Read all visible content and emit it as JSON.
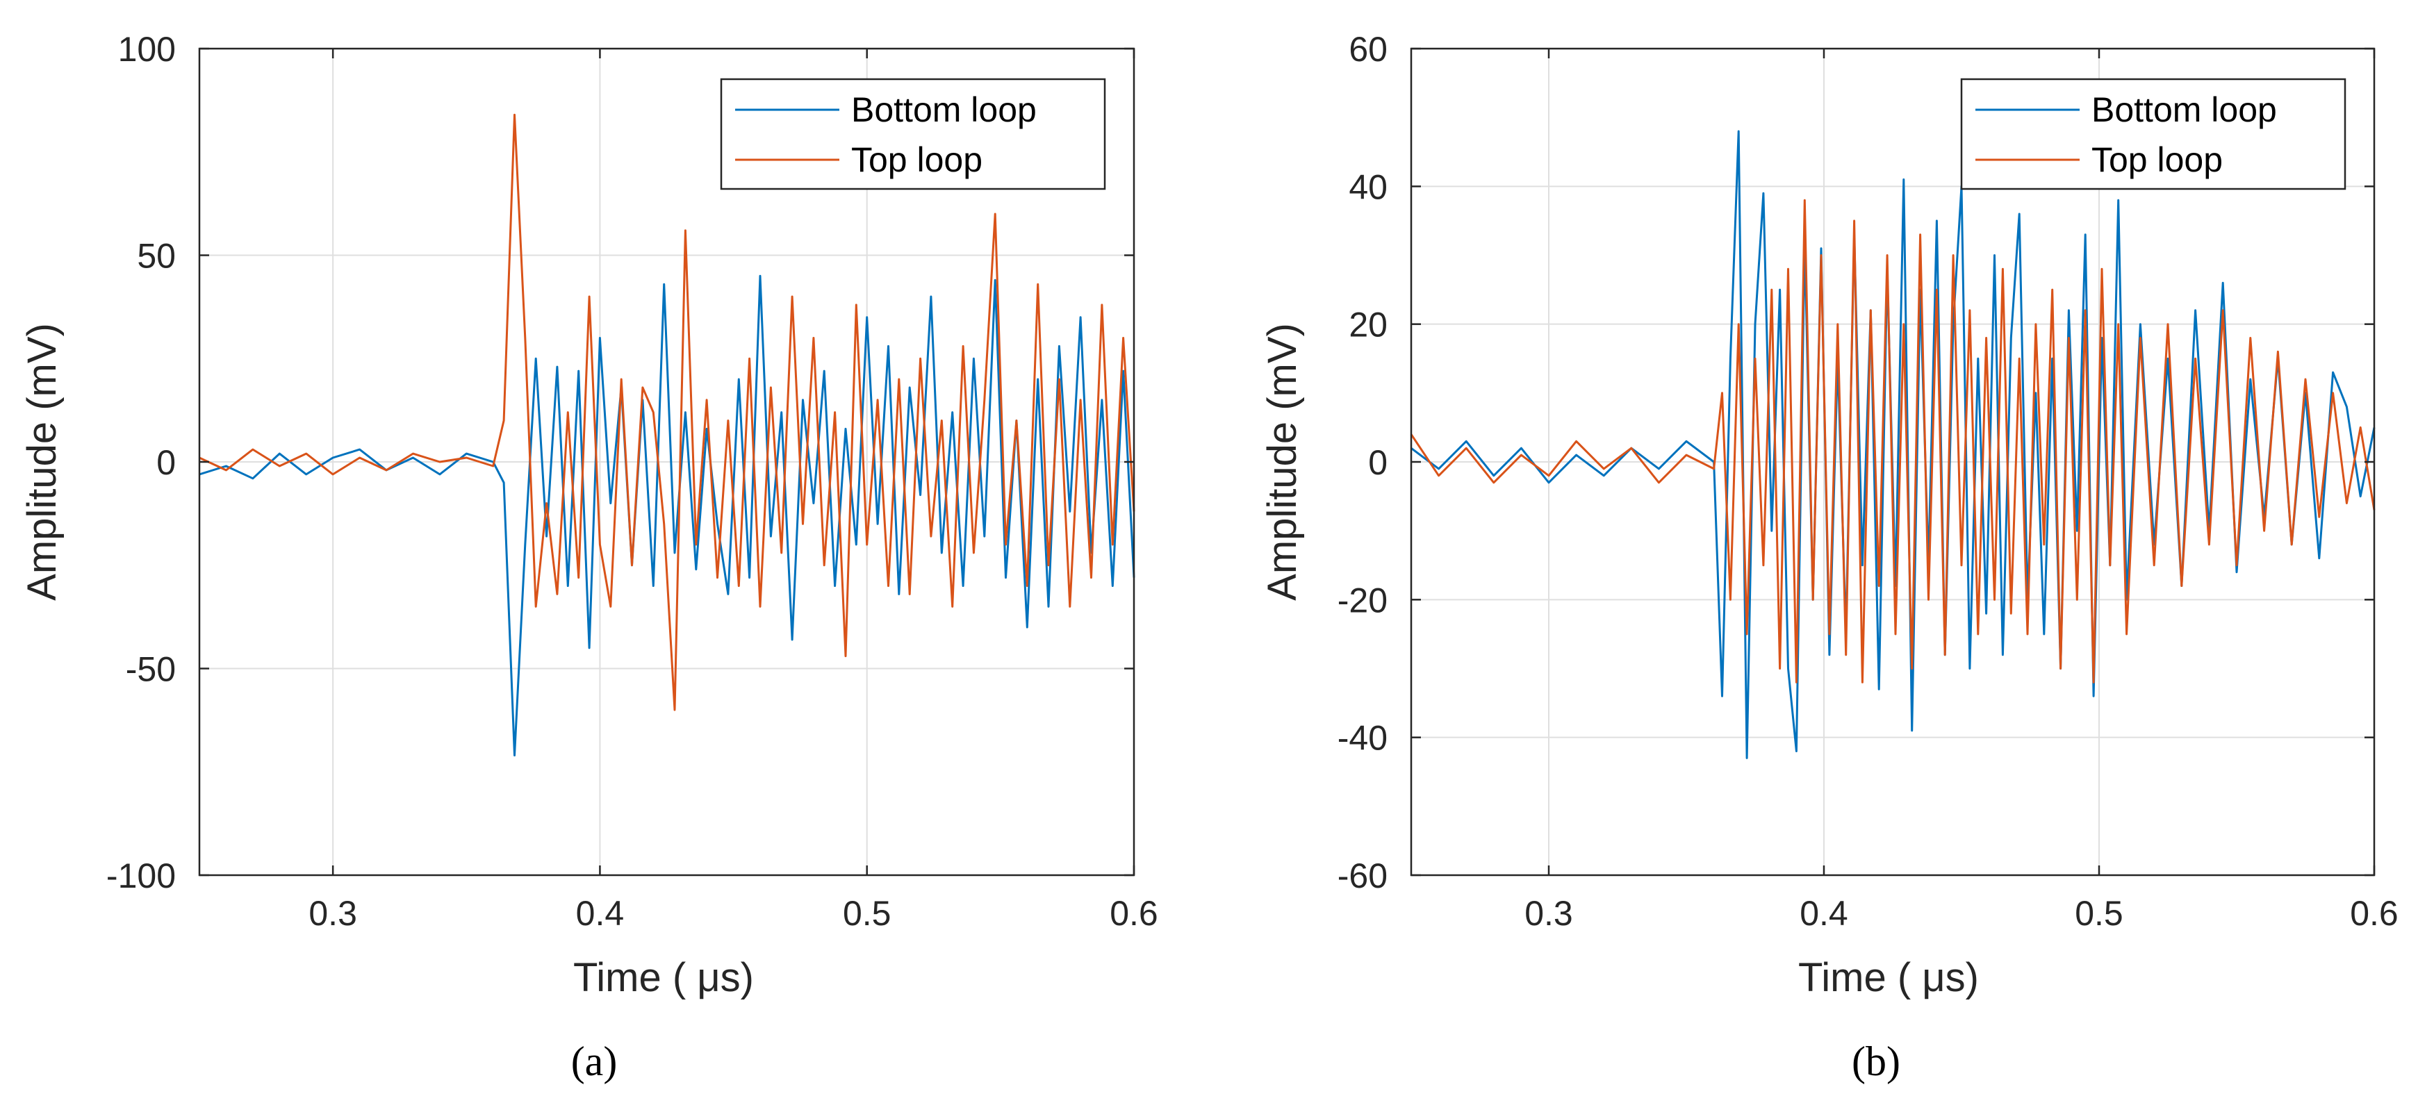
{
  "chart_data": [
    {
      "type": "line",
      "panel_label": "(a)",
      "xlabel": "Time (  μs)",
      "ylabel": "Amplitude (mV)",
      "xlim": [
        0.25,
        0.6
      ],
      "ylim": [
        -100,
        100
      ],
      "xticks": [
        0.3,
        0.4,
        0.5,
        0.6
      ],
      "xtick_labels": [
        "0.3",
        "0.4",
        "0.5",
        "0.6"
      ],
      "yticks": [
        -100,
        -50,
        0,
        50,
        100
      ],
      "ytick_labels": [
        "-100",
        "-50",
        "0",
        "50",
        "100"
      ],
      "grid": true,
      "legend": "top-right",
      "series": [
        {
          "name": "Bottom loop",
          "color": "#0072BD",
          "x": [
            0.25,
            0.26,
            0.27,
            0.28,
            0.29,
            0.3,
            0.31,
            0.32,
            0.33,
            0.34,
            0.35,
            0.36,
            0.364,
            0.368,
            0.372,
            0.376,
            0.38,
            0.384,
            0.388,
            0.392,
            0.396,
            0.4,
            0.404,
            0.408,
            0.412,
            0.416,
            0.42,
            0.424,
            0.428,
            0.432,
            0.436,
            0.44,
            0.444,
            0.448,
            0.452,
            0.456,
            0.46,
            0.464,
            0.468,
            0.472,
            0.476,
            0.48,
            0.484,
            0.488,
            0.492,
            0.496,
            0.5,
            0.504,
            0.508,
            0.512,
            0.516,
            0.52,
            0.524,
            0.528,
            0.532,
            0.536,
            0.54,
            0.544,
            0.548,
            0.552,
            0.556,
            0.56,
            0.564,
            0.568,
            0.572,
            0.576,
            0.58,
            0.584,
            0.588,
            0.592,
            0.596,
            0.6
          ],
          "y": [
            -3,
            -1,
            -4,
            2,
            -3,
            1,
            3,
            -2,
            1,
            -3,
            2,
            0,
            -5,
            -71,
            -20,
            25,
            -18,
            23,
            -30,
            22,
            -45,
            30,
            -10,
            18,
            -25,
            15,
            -30,
            43,
            -22,
            12,
            -26,
            8,
            -15,
            -32,
            20,
            -28,
            45,
            -18,
            12,
            -43,
            15,
            -10,
            22,
            -30,
            8,
            -20,
            35,
            -15,
            28,
            -32,
            18,
            -8,
            40,
            -22,
            12,
            -30,
            25,
            -18,
            44,
            -28,
            10,
            -40,
            20,
            -35,
            28,
            -12,
            35,
            -22,
            15,
            -30,
            22,
            -28
          ]
        },
        {
          "name": "Top loop",
          "color": "#D95319",
          "x": [
            0.25,
            0.26,
            0.27,
            0.28,
            0.29,
            0.3,
            0.31,
            0.32,
            0.33,
            0.34,
            0.35,
            0.36,
            0.364,
            0.368,
            0.372,
            0.376,
            0.38,
            0.384,
            0.388,
            0.392,
            0.396,
            0.4,
            0.404,
            0.408,
            0.412,
            0.416,
            0.42,
            0.424,
            0.428,
            0.432,
            0.436,
            0.44,
            0.444,
            0.448,
            0.452,
            0.456,
            0.46,
            0.464,
            0.468,
            0.472,
            0.476,
            0.48,
            0.484,
            0.488,
            0.492,
            0.496,
            0.5,
            0.504,
            0.508,
            0.512,
            0.516,
            0.52,
            0.524,
            0.528,
            0.532,
            0.536,
            0.54,
            0.544,
            0.548,
            0.552,
            0.556,
            0.56,
            0.564,
            0.568,
            0.572,
            0.576,
            0.58,
            0.584,
            0.588,
            0.592,
            0.596,
            0.6
          ],
          "y": [
            1,
            -2,
            3,
            -1,
            2,
            -3,
            1,
            -2,
            2,
            0,
            1,
            -1,
            10,
            84,
            30,
            -35,
            -10,
            -32,
            12,
            -28,
            40,
            -20,
            -35,
            20,
            -25,
            18,
            12,
            -15,
            -60,
            56,
            -20,
            15,
            -28,
            10,
            -30,
            25,
            -35,
            18,
            -22,
            40,
            -15,
            30,
            -25,
            12,
            -47,
            38,
            -20,
            15,
            -30,
            20,
            -32,
            25,
            -18,
            10,
            -35,
            28,
            -22,
            15,
            60,
            -20,
            10,
            -30,
            43,
            -25,
            20,
            -35,
            15,
            -28,
            38,
            -20,
            30,
            -12
          ]
        }
      ]
    },
    {
      "type": "line",
      "panel_label": "(b)",
      "xlabel": "Time (  μs)",
      "ylabel": "Amplitude (mV)",
      "xlim": [
        0.25,
        0.6
      ],
      "ylim": [
        -60,
        60
      ],
      "xticks": [
        0.3,
        0.4,
        0.5,
        0.6
      ],
      "xtick_labels": [
        "0.3",
        "0.4",
        "0.5",
        "0.6"
      ],
      "yticks": [
        -60,
        -40,
        -20,
        0,
        20,
        40,
        60
      ],
      "ytick_labels": [
        "-60",
        "-40",
        "-20",
        "0",
        "20",
        "40",
        "60"
      ],
      "grid": true,
      "legend": "top-right",
      "series": [
        {
          "name": "Bottom loop",
          "color": "#0072BD",
          "x": [
            0.25,
            0.26,
            0.27,
            0.28,
            0.29,
            0.3,
            0.31,
            0.32,
            0.33,
            0.34,
            0.35,
            0.36,
            0.363,
            0.366,
            0.369,
            0.372,
            0.375,
            0.378,
            0.381,
            0.384,
            0.387,
            0.39,
            0.393,
            0.396,
            0.399,
            0.402,
            0.405,
            0.408,
            0.411,
            0.414,
            0.417,
            0.42,
            0.423,
            0.426,
            0.429,
            0.432,
            0.435,
            0.438,
            0.441,
            0.444,
            0.447,
            0.45,
            0.453,
            0.456,
            0.459,
            0.462,
            0.465,
            0.468,
            0.471,
            0.474,
            0.477,
            0.48,
            0.483,
            0.486,
            0.489,
            0.492,
            0.495,
            0.498,
            0.501,
            0.504,
            0.507,
            0.51,
            0.515,
            0.52,
            0.525,
            0.53,
            0.535,
            0.54,
            0.545,
            0.55,
            0.555,
            0.56,
            0.565,
            0.57,
            0.575,
            0.58,
            0.585,
            0.59,
            0.595,
            0.6
          ],
          "y": [
            2,
            -1,
            3,
            -2,
            2,
            -3,
            1,
            -2,
            2,
            -1,
            3,
            0,
            -34,
            15,
            48,
            -43,
            20,
            39,
            -10,
            25,
            -30,
            -42,
            32,
            -20,
            31,
            -28,
            15,
            -25,
            33,
            -15,
            22,
            -33,
            28,
            -18,
            41,
            -39,
            25,
            -15,
            35,
            -28,
            20,
            40,
            -30,
            15,
            -22,
            30,
            -28,
            18,
            36,
            -20,
            10,
            -25,
            15,
            -30,
            22,
            -10,
            33,
            -34,
            18,
            -15,
            38,
            -20,
            20,
            -12,
            15,
            -18,
            22,
            -10,
            26,
            -16,
            12,
            -8,
            15,
            -12,
            10,
            -14,
            13,
            8,
            -5,
            5
          ]
        },
        {
          "name": "Top loop",
          "color": "#D95319",
          "x": [
            0.25,
            0.26,
            0.27,
            0.28,
            0.29,
            0.3,
            0.31,
            0.32,
            0.33,
            0.34,
            0.35,
            0.36,
            0.363,
            0.366,
            0.369,
            0.372,
            0.375,
            0.378,
            0.381,
            0.384,
            0.387,
            0.39,
            0.393,
            0.396,
            0.399,
            0.402,
            0.405,
            0.408,
            0.411,
            0.414,
            0.417,
            0.42,
            0.423,
            0.426,
            0.429,
            0.432,
            0.435,
            0.438,
            0.441,
            0.444,
            0.447,
            0.45,
            0.453,
            0.456,
            0.459,
            0.462,
            0.465,
            0.468,
            0.471,
            0.474,
            0.477,
            0.48,
            0.483,
            0.486,
            0.489,
            0.492,
            0.495,
            0.498,
            0.501,
            0.504,
            0.507,
            0.51,
            0.515,
            0.52,
            0.525,
            0.53,
            0.535,
            0.54,
            0.545,
            0.55,
            0.555,
            0.56,
            0.565,
            0.57,
            0.575,
            0.58,
            0.585,
            0.59,
            0.595,
            0.6
          ],
          "y": [
            4,
            -2,
            2,
            -3,
            1,
            -2,
            3,
            -1,
            2,
            -3,
            1,
            -1,
            10,
            -20,
            20,
            -25,
            15,
            -15,
            25,
            -30,
            28,
            -32,
            38,
            -20,
            30,
            -25,
            20,
            -28,
            35,
            -32,
            22,
            -18,
            30,
            -25,
            20,
            -30,
            33,
            -20,
            25,
            -28,
            30,
            -15,
            22,
            -25,
            18,
            -20,
            28,
            -22,
            15,
            -25,
            20,
            -12,
            25,
            -30,
            18,
            -20,
            22,
            -32,
            28,
            -15,
            20,
            -25,
            18,
            -15,
            20,
            -18,
            15,
            -12,
            22,
            -15,
            18,
            -10,
            16,
            -12,
            12,
            -8,
            10,
            -6,
            5,
            -7
          ]
        }
      ]
    }
  ]
}
